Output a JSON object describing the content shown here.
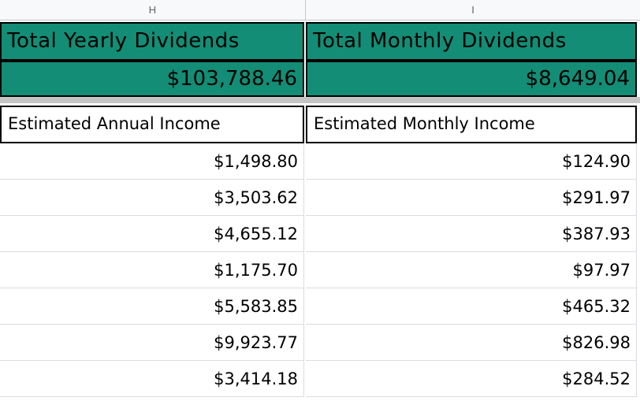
{
  "column_headers": [
    "H",
    "I"
  ],
  "summary": {
    "yearly_label": "Total Yearly Dividends",
    "monthly_label": "Total Monthly Dividends",
    "yearly_value": "$103,788.46",
    "monthly_value": "$8,649.04",
    "fill_color": "#138d75"
  },
  "table": {
    "headers": [
      "Estimated Annual Income",
      "Estimated Monthly Income"
    ],
    "rows": [
      [
        "$1,498.80",
        "$124.90"
      ],
      [
        "$3,503.62",
        "$291.97"
      ],
      [
        "$4,655.12",
        "$387.93"
      ],
      [
        "$1,175.70",
        "$97.97"
      ],
      [
        "$5,583.85",
        "$465.32"
      ],
      [
        "$9,923.77",
        "$826.98"
      ],
      [
        "$3,414.18",
        "$284.52"
      ]
    ]
  }
}
